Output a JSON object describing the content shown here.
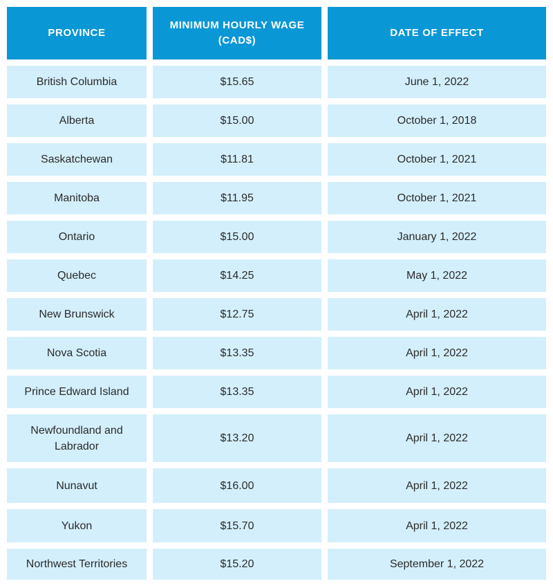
{
  "table": {
    "headers": [
      "PROVINCE",
      "MINIMUM HOURLY WAGE (CAD$)",
      "DATE OF EFFECT"
    ],
    "rows": [
      [
        "British Columbia",
        "$15.65",
        "June 1, 2022"
      ],
      [
        "Alberta",
        "$15.00",
        "October 1, 2018"
      ],
      [
        "Saskatchewan",
        "$11.81",
        "October 1, 2021"
      ],
      [
        "Manitoba",
        "$11.95",
        "October 1, 2021"
      ],
      [
        "Ontario",
        "$15.00",
        "January 1, 2022"
      ],
      [
        "Quebec",
        "$14.25",
        "May 1, 2022"
      ],
      [
        "New Brunswick",
        "$12.75",
        "April 1, 2022"
      ],
      [
        "Nova Scotia",
        "$13.35",
        "April 1, 2022"
      ],
      [
        "Prince Edward Island",
        "$13.35",
        "April 1, 2022"
      ],
      [
        "Newfoundland and Labrador",
        "$13.20",
        "April 1, 2022"
      ],
      [
        "Nunavut",
        "$16.00",
        "April 1, 2022"
      ],
      [
        "Yukon",
        "$15.70",
        "April 1, 2022"
      ],
      [
        "Northwest Territories",
        "$15.20",
        "September 1, 2022"
      ]
    ]
  }
}
